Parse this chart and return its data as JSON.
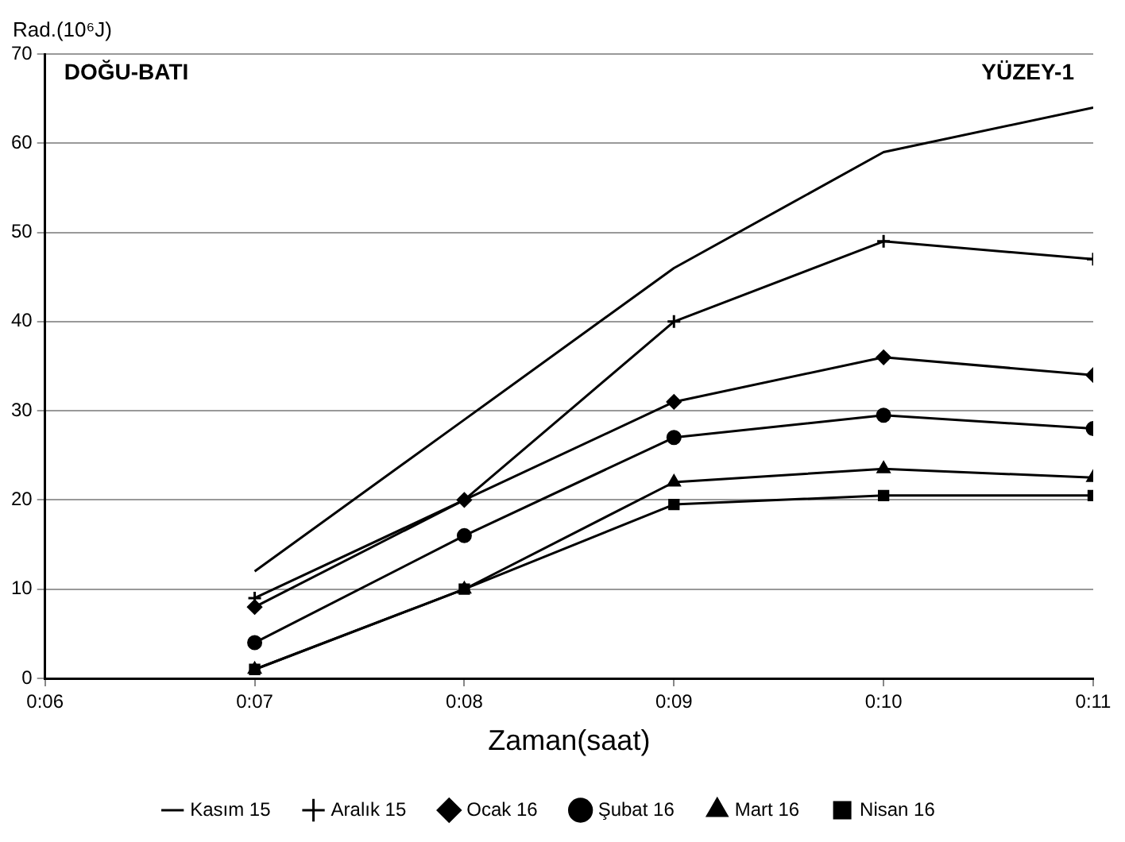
{
  "chart_data": {
    "type": "line",
    "xlabel": "Zaman(saat)",
    "ylabel": "Rad.(10⁶J)",
    "x": [
      7,
      8,
      9,
      10,
      11
    ],
    "xlim": [
      6,
      11
    ],
    "xticks": [
      {
        "value": 6,
        "label": "0:06"
      },
      {
        "value": 7,
        "label": "0:07"
      },
      {
        "value": 8,
        "label": "0:08"
      },
      {
        "value": 9,
        "label": "0:09"
      },
      {
        "value": 10,
        "label": "0:10"
      },
      {
        "value": 11,
        "label": "0:11"
      }
    ],
    "ylim": [
      0,
      70
    ],
    "yticks": [
      0,
      10,
      20,
      30,
      40,
      50,
      60,
      70
    ],
    "grid": "y",
    "legend": "bottom",
    "line_style": "solid",
    "annotations": [
      "DOĞU-BATI",
      "YÜZEY-1"
    ],
    "series": [
      {
        "name": "Kasım 15",
        "color": "#000000",
        "marker": "none",
        "values": [
          12,
          29,
          46,
          59,
          64
        ]
      },
      {
        "name": "Aralık 15",
        "color": "#000000",
        "marker": "cross",
        "values": [
          9,
          20,
          40,
          49,
          47
        ]
      },
      {
        "name": "Ocak 16",
        "color": "#000000",
        "marker": "diamond",
        "values": [
          8,
          20,
          31,
          36,
          34
        ]
      },
      {
        "name": "Şubat 16",
        "color": "#000000",
        "marker": "circle",
        "values": [
          4,
          16,
          27,
          29.5,
          28
        ]
      },
      {
        "name": "Mart 16",
        "color": "#000000",
        "marker": "triangle",
        "values": [
          1,
          10,
          22,
          23.5,
          22.5
        ]
      },
      {
        "name": "Nisan 16",
        "color": "#000000",
        "marker": "square",
        "values": [
          1,
          10,
          19.5,
          20.5,
          20.5
        ]
      }
    ]
  }
}
